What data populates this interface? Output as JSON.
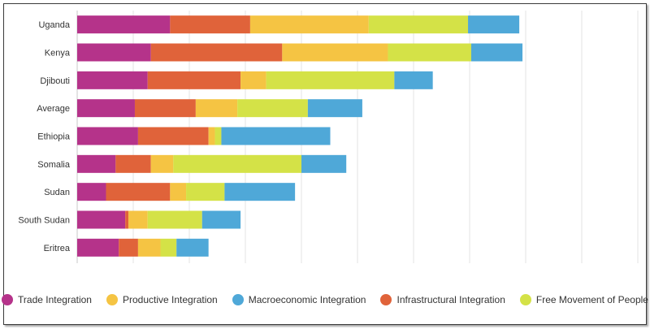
{
  "chart_data": {
    "type": "bar",
    "orientation": "horizontal",
    "stacked": true,
    "title": "",
    "xlabel": "",
    "ylabel": "",
    "xlim": [
      0,
      1.75
    ],
    "grid": true,
    "legend_position": "bottom",
    "categories": [
      "Uganda",
      "Kenya",
      "Djibouti",
      "Average",
      "Ethiopia",
      "Somalia",
      "Sudan",
      "South Sudan",
      "Eritrea"
    ],
    "series": [
      {
        "name": "Trade Integration",
        "color": "#b5338a",
        "values": [
          0.29,
          0.23,
          0.22,
          0.18,
          0.19,
          0.12,
          0.09,
          0.15,
          0.13
        ]
      },
      {
        "name": "Infrastructural Integration",
        "color": "#e0633a",
        "values": [
          0.25,
          0.41,
          0.29,
          0.19,
          0.22,
          0.11,
          0.2,
          0.01,
          0.06
        ]
      },
      {
        "name": "Productive Integration",
        "color": "#f5c443",
        "values": [
          0.37,
          0.33,
          0.08,
          0.13,
          0.02,
          0.07,
          0.05,
          0.06,
          0.07
        ]
      },
      {
        "name": "Free Movement of People",
        "color": "#d4e247",
        "values": [
          0.31,
          0.26,
          0.4,
          0.22,
          0.02,
          0.4,
          0.12,
          0.17,
          0.05
        ]
      },
      {
        "name": "Macroeconomic Integration",
        "color": "#4fa8d8",
        "values": [
          0.16,
          0.16,
          0.12,
          0.17,
          0.34,
          0.14,
          0.22,
          0.12,
          0.1
        ]
      }
    ]
  },
  "legend": [
    {
      "label": "Trade Integration",
      "color": "#b5338a"
    },
    {
      "label": "Productive Integration",
      "color": "#f5c443"
    },
    {
      "label": "Macroeconomic Integration",
      "color": "#4fa8d8"
    },
    {
      "label": "Infrastructural Integration",
      "color": "#e0633a"
    },
    {
      "label": "Free Movement of People",
      "color": "#d4e247"
    }
  ]
}
